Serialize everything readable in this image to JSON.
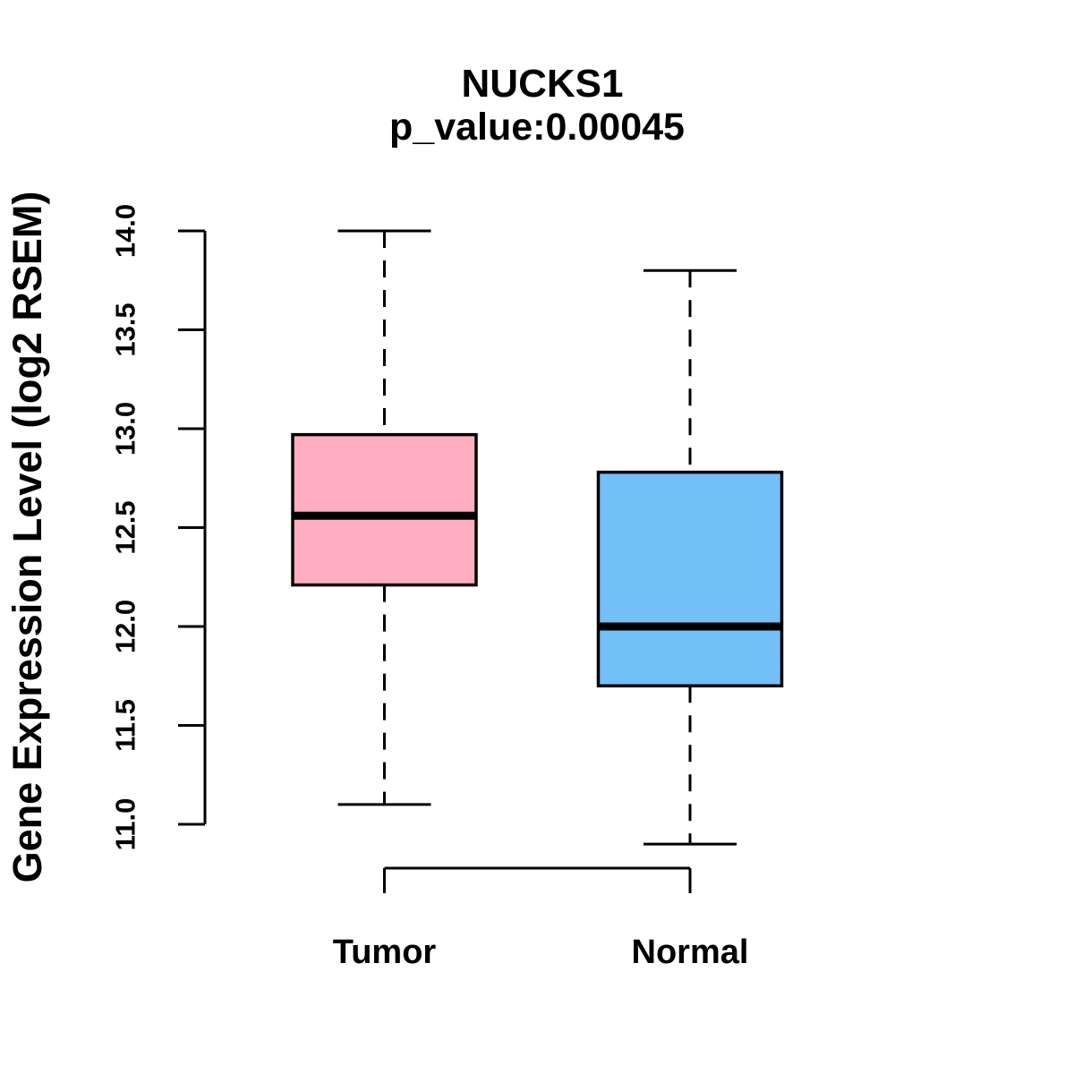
{
  "title": "NUCKS1",
  "subtitle": "p_value:0.00045",
  "ylabel": "Gene Expression Level (log2 RSEM)",
  "colors": {
    "tumor_fill": "#FFAEC2",
    "normal_fill": "#73BFF7",
    "line": "#000000",
    "background": "#FFFFFF"
  },
  "chart_data": {
    "type": "boxplot",
    "title": "NUCKS1",
    "subtitle": "p_value:0.00045",
    "xlabel": "",
    "ylabel": "Gene Expression Level (log2 RSEM)",
    "categories": [
      "Tumor",
      "Normal"
    ],
    "yticks": [
      11.0,
      11.5,
      12.0,
      12.5,
      13.0,
      13.5,
      14.0
    ],
    "yaxis_range": [
      11.0,
      14.0
    ],
    "ylim": [
      10.9,
      14.0
    ],
    "grid": false,
    "legend": "none",
    "whisker_style": "dashed",
    "series": [
      {
        "name": "Tumor",
        "color": "#FFAEC2",
        "whisker_low": 11.1,
        "q1": 12.21,
        "median": 12.56,
        "q3": 12.97,
        "whisker_high": 14.0
      },
      {
        "name": "Normal",
        "color": "#73BFF7",
        "whisker_low": 10.9,
        "q1": 11.7,
        "median": 12.0,
        "q3": 12.78,
        "whisker_high": 13.8
      }
    ]
  }
}
